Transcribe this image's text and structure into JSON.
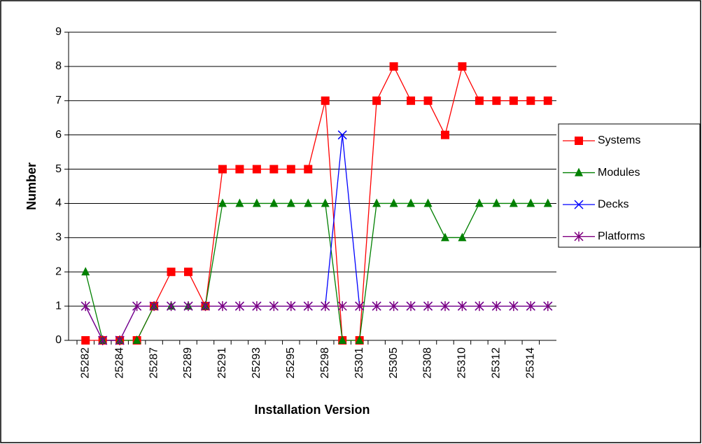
{
  "chart_data": {
    "type": "line",
    "x_label": "Installation Version",
    "y_label": "Number",
    "categories": [
      "25282",
      null,
      "25284",
      null,
      "25287",
      null,
      "25289",
      null,
      "25291",
      null,
      "25293",
      null,
      "25295",
      null,
      "25298",
      null,
      "25301",
      null,
      "25305",
      null,
      "25308",
      null,
      "25310",
      null,
      "25312",
      null,
      "25314",
      null
    ],
    "series": [
      {
        "name": "Systems",
        "color": "#ff0000",
        "marker": "square",
        "values": [
          0,
          0,
          0,
          0,
          1,
          2,
          2,
          1,
          5,
          5,
          5,
          5,
          5,
          5,
          7,
          0,
          0,
          7,
          8,
          7,
          7,
          6,
          8,
          7,
          7,
          7,
          7,
          7
        ]
      },
      {
        "name": "Modules",
        "color": "#008000",
        "marker": "triangle",
        "values": [
          2,
          0,
          0,
          0,
          1,
          1,
          1,
          1,
          4,
          4,
          4,
          4,
          4,
          4,
          4,
          0,
          0,
          4,
          4,
          4,
          4,
          3,
          3,
          4,
          4,
          4,
          4,
          4
        ]
      },
      {
        "name": "Decks",
        "color": "#0000ff",
        "marker": "x",
        "values": [
          1,
          0,
          0,
          1,
          1,
          1,
          1,
          1,
          1,
          1,
          1,
          1,
          1,
          1,
          1,
          6,
          1,
          1,
          1,
          1,
          1,
          1,
          1,
          1,
          1,
          1,
          1,
          1
        ]
      },
      {
        "name": "Platforms",
        "color": "#800080",
        "marker": "star",
        "values": [
          1,
          0,
          0,
          1,
          1,
          1,
          1,
          1,
          1,
          1,
          1,
          1,
          1,
          1,
          1,
          1,
          1,
          1,
          1,
          1,
          1,
          1,
          1,
          1,
          1,
          1,
          1,
          1
        ]
      }
    ],
    "ylim": [
      0,
      9
    ],
    "yticks": [
      0,
      1,
      2,
      3,
      4,
      5,
      6,
      7,
      8,
      9
    ],
    "grid": true,
    "legend": "right"
  }
}
